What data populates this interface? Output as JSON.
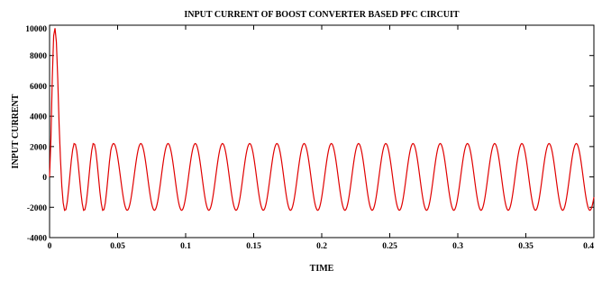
{
  "chart_data": {
    "type": "line",
    "title": "INPUT CURRENT OF BOOST CONVERTER BASED PFC CIRCUIT",
    "xlabel": "TIME",
    "ylabel": "INPUT CURRENT",
    "xlim": [
      0,
      0.4
    ],
    "ylim": [
      -4000,
      10000
    ],
    "x_ticks": [
      0,
      0.05,
      0.1,
      0.15,
      0.2,
      0.25,
      0.3,
      0.35,
      0.4
    ],
    "x_tick_labels": [
      "0",
      "0.05",
      "0.1",
      "0.15",
      "0.2",
      "0.25",
      "0.3",
      "0.35",
      "0.4"
    ],
    "y_ticks": [
      -4000,
      -2000,
      0,
      2000,
      4000,
      6000,
      8000,
      10000
    ],
    "y_tick_labels": [
      "-4000",
      "-2000",
      "0",
      "2000",
      "4000",
      "6000",
      "8000",
      "10000"
    ],
    "grid": false,
    "legend": "none",
    "series": [
      {
        "color": "#e00000",
        "x": [
          0,
          0.001,
          0.002,
          0.003,
          0.004,
          0.005,
          0.006,
          0.007,
          0.008,
          0.009,
          0.01,
          0.011,
          0.012,
          0.013,
          0.014,
          0.015,
          0.016,
          0.017,
          0.018,
          0.019,
          0.02,
          0.021,
          0.022,
          0.023,
          0.024,
          0.025,
          0.026,
          0.027,
          0.028,
          0.029,
          0.03,
          0.031,
          0.032,
          0.033,
          0.034,
          0.035,
          0.036,
          0.037,
          0.038,
          0.039,
          0.04,
          0.041,
          0.042,
          0.043,
          0.044,
          0.045
        ],
        "y": [
          0,
          2500,
          6500,
          9300,
          9800,
          8900,
          6500,
          3500,
          1200,
          -600,
          -1700,
          -2200,
          -2150,
          -1650,
          -800,
          150,
          1100,
          1800,
          2200,
          2150,
          1700,
          900,
          -50,
          -1000,
          -1750,
          -2200,
          -2150,
          -1700,
          -900,
          50,
          1000,
          1750,
          2200,
          2150,
          1700,
          900,
          -50,
          -1000,
          -1750,
          -2200,
          -2150,
          -1700,
          -900,
          50,
          1000,
          1750
        ]
      }
    ],
    "steady_state": {
      "amplitude": 2200,
      "period": 0.02,
      "start_x": 0.045,
      "end_x": 0.4
    }
  }
}
